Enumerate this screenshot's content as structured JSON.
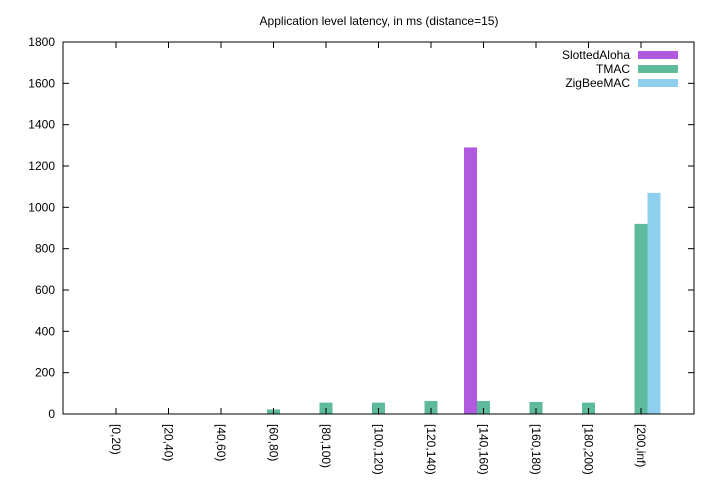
{
  "chart_data": {
    "type": "bar",
    "title": "Application level latency, in ms (distance=15)",
    "xlabel": "",
    "ylabel": "",
    "ylim": [
      0,
      1800
    ],
    "yticks": [
      0,
      200,
      400,
      600,
      800,
      1000,
      1200,
      1400,
      1600,
      1800
    ],
    "categories": [
      "[0,20)",
      "[20,40)",
      "[40,60)",
      "[60,80)",
      "[80,100)",
      "[100,120)",
      "[120,140)",
      "[140,160)",
      "[160,180)",
      "[180,200)",
      "[200,inf)"
    ],
    "legend_position": "top-right",
    "grid": false,
    "series": [
      {
        "name": "SlottedAloha",
        "color": "#b05bdf",
        "values": [
          0,
          0,
          0,
          0,
          0,
          0,
          0,
          1290,
          0,
          0,
          0
        ]
      },
      {
        "name": "TMAC",
        "color": "#5dbb9b",
        "values": [
          0,
          0,
          0,
          22,
          55,
          55,
          63,
          63,
          58,
          55,
          920
        ]
      },
      {
        "name": "ZigBeeMAC",
        "color": "#8ecfee",
        "values": [
          0,
          0,
          0,
          0,
          0,
          0,
          0,
          0,
          0,
          0,
          1070
        ]
      }
    ]
  }
}
